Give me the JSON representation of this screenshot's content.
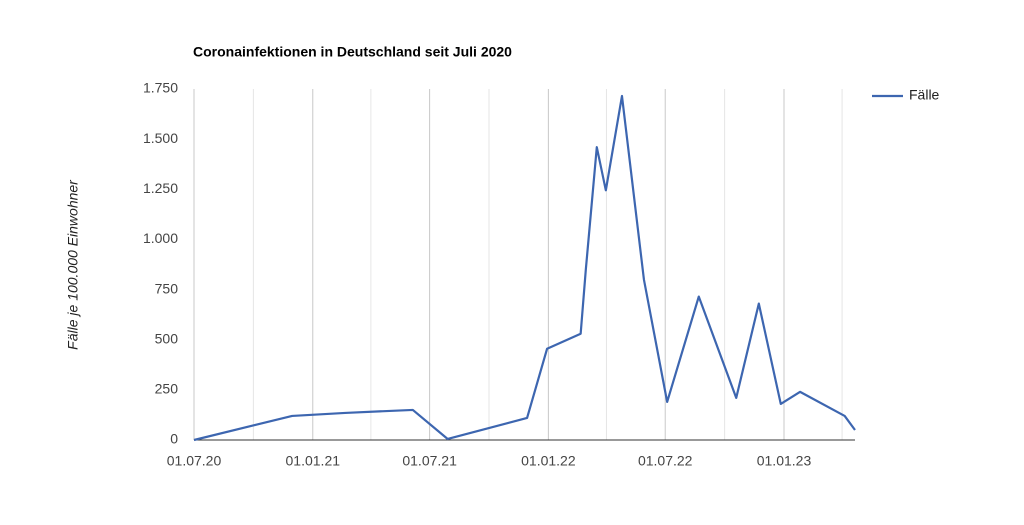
{
  "chart_data": {
    "type": "line",
    "title": "Coronainfektionen in Deutschland seit Juli 2020",
    "y_label": "Fälle je 100.000 Einwohner",
    "x": [
      "2020-07-01",
      "2020-11-30",
      "2021-02-20",
      "2021-06-05",
      "2021-07-29",
      "2021-11-29",
      "2021-12-30",
      "2022-02-20",
      "2022-02-28",
      "2022-03-17",
      "2022-03-31",
      "2022-04-25",
      "2022-05-29",
      "2022-07-04",
      "2022-08-22",
      "2022-10-19",
      "2022-11-23",
      "2022-12-27",
      "2023-01-26",
      "2023-04-05",
      "2023-04-21"
    ],
    "series": [
      {
        "name": "Fälle",
        "color": "#3d66b0",
        "values": [
          0,
          120,
          135,
          150,
          5,
          110,
          455,
          530,
          850,
          1460,
          1245,
          1715,
          800,
          190,
          715,
          210,
          680,
          180,
          240,
          120,
          50
        ]
      }
    ],
    "xlim": [
      "2020-07-01",
      "2023-04-21"
    ],
    "xticks": [
      {
        "value": "2020-07-01",
        "label": "01.07.20"
      },
      {
        "value": "2021-01-01",
        "label": "01.01.21"
      },
      {
        "value": "2021-07-01",
        "label": "01.07.21"
      },
      {
        "value": "2022-01-01",
        "label": "01.01.22"
      },
      {
        "value": "2022-07-01",
        "label": "01.07.22"
      },
      {
        "value": "2023-01-01",
        "label": "01.01.23"
      }
    ],
    "xminorticks": [
      "2020-10-01",
      "2021-04-01",
      "2021-10-01",
      "2022-04-01",
      "2022-10-01",
      "2023-04-01"
    ],
    "ylim": [
      0,
      1750
    ],
    "yticks": [
      0,
      250,
      500,
      750,
      {
        "value": 1000,
        "label": "1.000"
      },
      {
        "value": 1250,
        "label": "1.250"
      },
      {
        "value": 1500,
        "label": "1.500"
      },
      {
        "value": 1750,
        "label": "1.750"
      }
    ],
    "grid": true,
    "legend": "right"
  }
}
